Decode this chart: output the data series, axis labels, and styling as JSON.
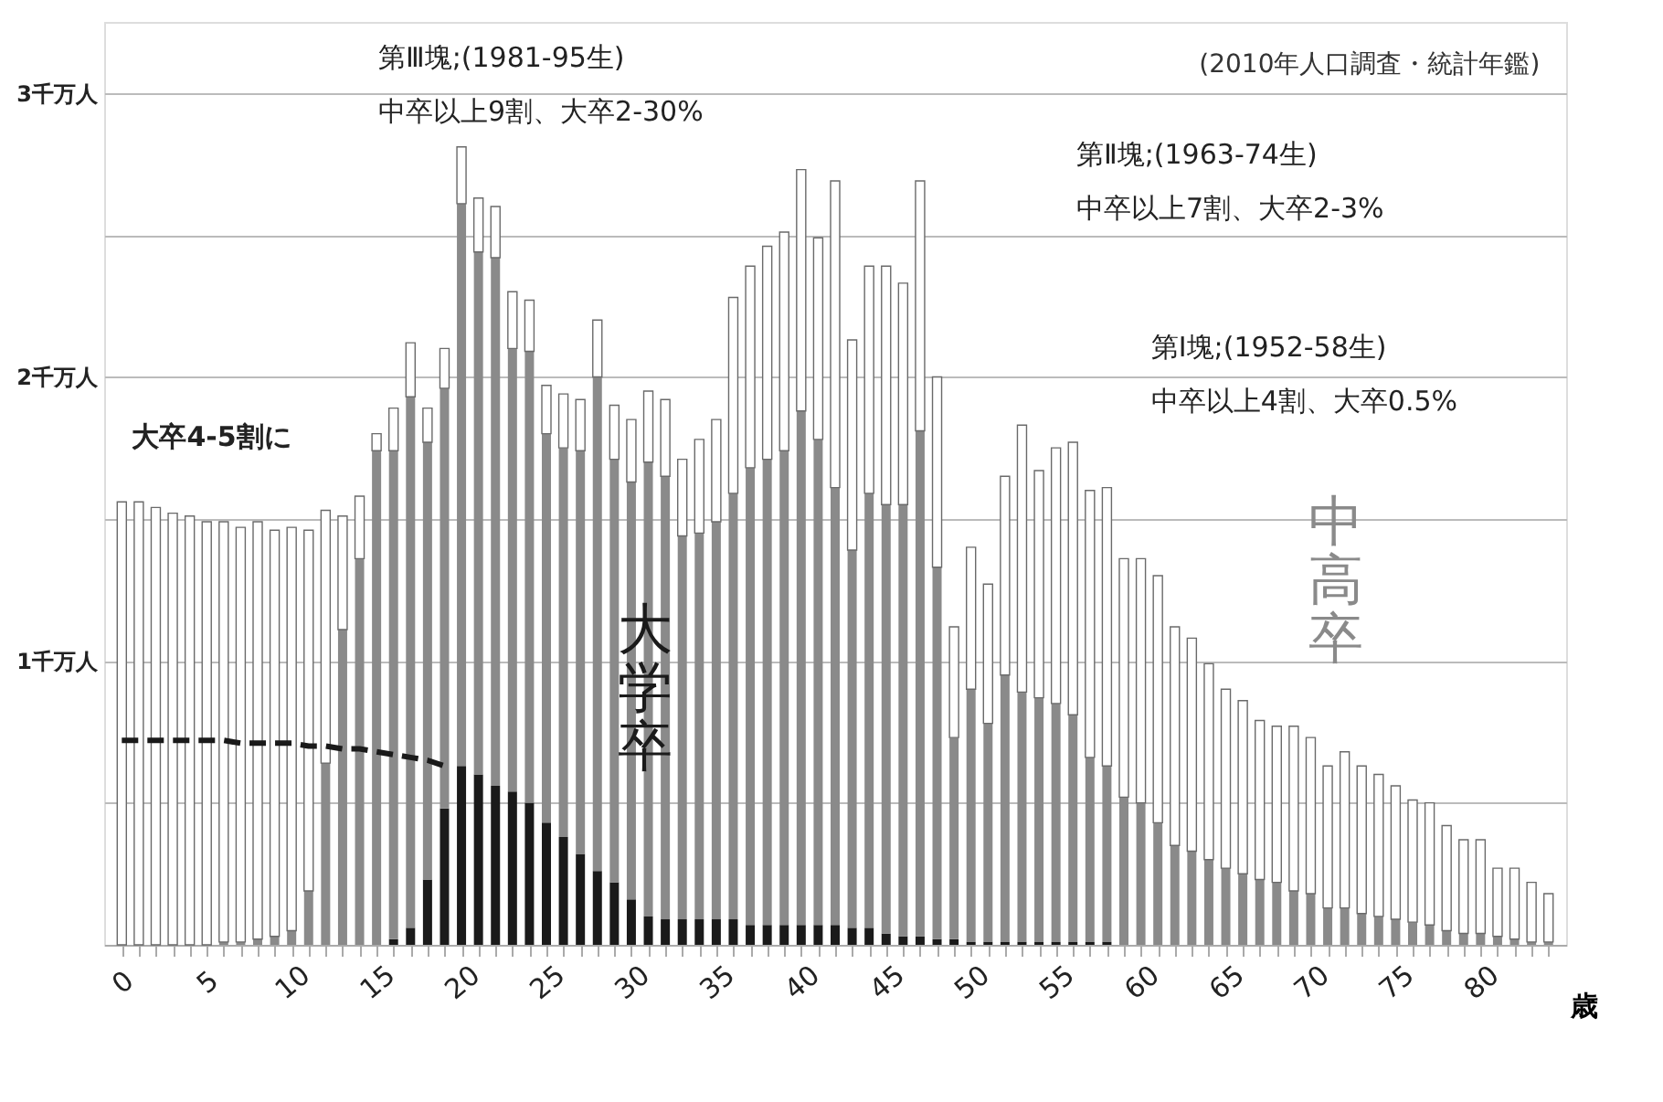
{
  "chart_data": {
    "type": "bar",
    "stacked": true,
    "grid": "y",
    "xlabel": "歳",
    "categories": [
      "0",
      null,
      null,
      null,
      null,
      "5",
      null,
      null,
      null,
      null,
      "10",
      null,
      null,
      null,
      null,
      "15",
      null,
      null,
      null,
      null,
      "20",
      null,
      null,
      null,
      null,
      "25",
      null,
      null,
      null,
      null,
      "30",
      null,
      null,
      null,
      null,
      "35",
      null,
      null,
      null,
      null,
      "40",
      null,
      null,
      null,
      null,
      "45",
      null,
      null,
      null,
      null,
      "50",
      null,
      null,
      null,
      null,
      "55",
      null,
      null,
      null,
      null,
      "60",
      null,
      null,
      null,
      null,
      "65",
      null,
      null,
      null,
      null,
      "70",
      null,
      null,
      null,
      null,
      "75",
      null,
      null,
      null,
      null,
      "80",
      null,
      null,
      null,
      null
    ],
    "ylim": [
      0,
      3.25
    ],
    "yticks": [
      {
        "value": 0.5,
        "label": null
      },
      {
        "value": 1,
        "label": "1千万人"
      },
      {
        "value": 1.5,
        "label": null
      },
      {
        "value": 2,
        "label": "2千万人"
      },
      {
        "value": 2.5,
        "label": null
      },
      {
        "value": 3,
        "label": "3千万人"
      }
    ],
    "series": [
      {
        "name": "大学卒",
        "color": "#1a1a1a",
        "values": [
          0,
          0,
          0,
          0,
          0,
          0,
          0,
          0,
          0,
          0,
          0,
          0,
          0,
          0,
          0,
          0,
          0.02,
          0.06,
          0.23,
          0.48,
          0.63,
          0.6,
          0.56,
          0.54,
          0.5,
          0.43,
          0.38,
          0.32,
          0.26,
          0.22,
          0.16,
          0.1,
          0.09,
          0.09,
          0.09,
          0.09,
          0.09,
          0.07,
          0.07,
          0.07,
          0.07,
          0.07,
          0.07,
          0.06,
          0.06,
          0.04,
          0.03,
          0.03,
          0.02,
          0.02,
          0.01,
          0.01,
          0.01,
          0.01,
          0.01,
          0.01,
          0.01,
          0.01,
          0.01,
          0,
          0,
          0,
          0,
          0,
          0,
          0,
          0,
          0,
          0,
          0,
          0,
          0,
          0,
          0,
          0,
          0,
          0,
          0,
          0,
          0,
          0,
          0,
          0,
          0,
          0
        ]
      },
      {
        "name": "中高卒",
        "color": "#8a8a8a",
        "values": [
          0,
          0,
          0,
          0,
          0,
          0,
          0.01,
          0.01,
          0.02,
          0.03,
          0.05,
          0.19,
          0.64,
          1.11,
          1.36,
          1.74,
          1.72,
          1.87,
          1.54,
          1.48,
          1.98,
          1.84,
          1.86,
          1.56,
          1.59,
          1.37,
          1.37,
          1.42,
          1.74,
          1.49,
          1.47,
          1.6,
          1.56,
          1.35,
          1.36,
          1.4,
          1.5,
          1.61,
          1.64,
          1.67,
          1.81,
          1.71,
          1.54,
          1.33,
          1.53,
          1.51,
          1.52,
          1.78,
          1.31,
          0.71,
          0.89,
          0.77,
          0.94,
          0.88,
          0.86,
          0.84,
          0.8,
          0.65,
          0.62,
          0.52,
          0.5,
          0.43,
          0.35,
          0.33,
          0.3,
          0.27,
          0.25,
          0.23,
          0.22,
          0.19,
          0.18,
          0.13,
          0.13,
          0.11,
          0.1,
          0.09,
          0.08,
          0.07,
          0.05,
          0.04,
          0.04,
          0.03,
          0.02,
          0.01,
          0.01
        ]
      },
      {
        "color": "#ffffff",
        "values": [
          1.56,
          1.56,
          1.54,
          1.52,
          1.51,
          1.49,
          1.48,
          1.46,
          1.47,
          1.43,
          1.42,
          1.27,
          0.89,
          0.4,
          0.22,
          0.06,
          0.15,
          0.19,
          0.12,
          0.14,
          0.2,
          0.19,
          0.18,
          0.2,
          0.18,
          0.17,
          0.19,
          0.18,
          0.2,
          0.19,
          0.22,
          0.25,
          0.27,
          0.27,
          0.33,
          0.36,
          0.69,
          0.71,
          0.75,
          0.77,
          0.85,
          0.71,
          1.08,
          0.74,
          0.8,
          0.84,
          0.78,
          0.88,
          0.67,
          0.39,
          0.5,
          0.49,
          0.7,
          0.94,
          0.8,
          0.9,
          0.96,
          0.94,
          0.98,
          0.84,
          0.86,
          0.87,
          0.77,
          0.75,
          0.69,
          0.63,
          0.61,
          0.56,
          0.55,
          0.58,
          0.55,
          0.5,
          0.55,
          0.52,
          0.5,
          0.47,
          0.43,
          0.43,
          0.37,
          0.33,
          0.33,
          0.24,
          0.25,
          0.21,
          0.17
        ]
      },
      {
        "type": "line",
        "color": "#1a1a1a",
        "line_style": "dashed",
        "values": [
          0.72,
          0.72,
          0.72,
          0.72,
          0.72,
          0.72,
          0.72,
          0.71,
          0.71,
          0.71,
          0.71,
          0.7,
          0.7,
          0.69,
          0.69,
          0.68,
          0.67,
          0.66,
          0.65,
          0.63,
          null,
          null,
          null,
          null,
          null,
          null,
          null,
          null,
          null,
          null,
          null,
          null,
          null,
          null,
          null,
          null,
          null,
          null,
          null,
          null,
          null,
          null,
          null,
          null,
          null,
          null,
          null,
          null,
          null,
          null,
          null,
          null,
          null,
          null,
          null,
          null,
          null,
          null,
          null,
          null,
          null,
          null,
          null,
          null,
          null,
          null,
          null,
          null,
          null,
          null,
          null,
          null,
          null,
          null,
          null,
          null,
          null,
          null,
          null,
          null,
          null,
          null,
          null,
          null,
          null
        ]
      }
    ],
    "annotations": [
      "(2010年人口調査・統計年鑑)",
      "第Ⅲ塊;(1981-95生)",
      "中卒以上9割、大卒2-30%",
      "第Ⅱ塊;(1963-74生)",
      "中卒以上7割、大卒2-3%",
      "第Ⅰ塊;(1952-58生)",
      "中卒以上4割、大卒0.5%",
      "大卒4-5割に"
    ]
  }
}
